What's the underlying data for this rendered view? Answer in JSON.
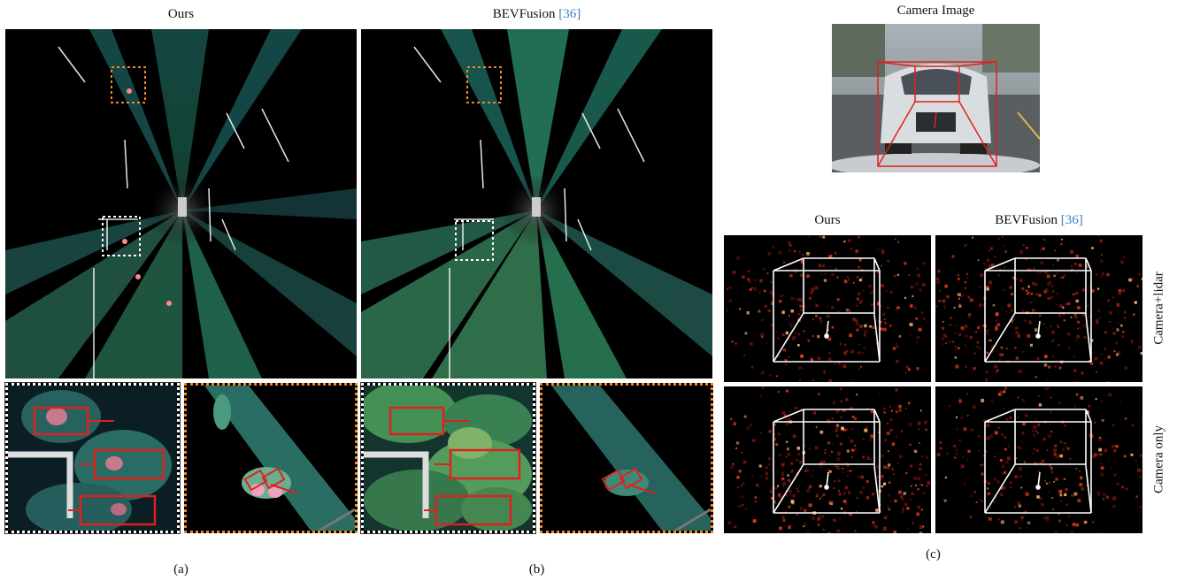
{
  "figure": {
    "panel_a": {
      "title": "Ours",
      "caption": "(a)"
    },
    "panel_b": {
      "title_text": "BEVFusion ",
      "title_ref": "[36]",
      "caption": "(b)"
    },
    "panel_c": {
      "camera_title": "Camera Image",
      "col_ours": "Ours",
      "col_bev_text": "BEVFusion ",
      "col_bev_ref": "[36]",
      "row_top": "Camera+lidar",
      "row_bottom": "Camera only",
      "caption": "(c)"
    },
    "colors": {
      "ref_link": "#3b7fc4",
      "box_red": "#e02020",
      "zoom_orange": "#f08a24",
      "zoom_white": "#ffffff"
    }
  }
}
